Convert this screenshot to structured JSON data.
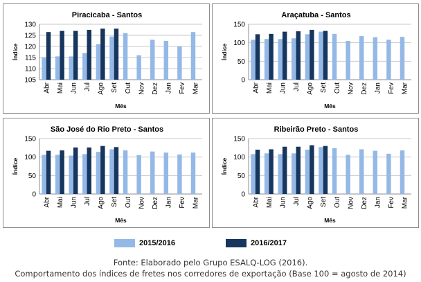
{
  "colors": {
    "s2015": "#95b9e6",
    "s2016": "#17365d",
    "grid": "#c9c9c9",
    "axis": "#8c8c8c"
  },
  "legend": {
    "s2015": "2015/2016",
    "s2016": "2016/2017"
  },
  "caption": {
    "source": "Fonte: Elaborado pelo Grupo ESALQ-LOG (2016).",
    "description": "Comportamento dos índices de fretes nos corredores de exportação (Base 100 = agosto de 2014)"
  },
  "chart_data": [
    {
      "type": "bar",
      "title": "Piracicaba - Santos",
      "xlabel": "Mês",
      "ylabel": "Índice",
      "ylim": [
        105,
        130
      ],
      "yticks": [
        105,
        110,
        115,
        120,
        125,
        130
      ],
      "grid": true,
      "categories": [
        "Abr",
        "Mai",
        "Jun",
        "Jul",
        "Ago",
        "Set",
        "Out",
        "Nov",
        "Dez",
        "Jan",
        "Fev",
        "Mar"
      ],
      "series": [
        {
          "name": "2015/2016",
          "values": [
            115,
            115.5,
            115.5,
            117,
            121,
            124.5,
            126,
            116,
            123,
            122.5,
            120,
            126.5
          ]
        },
        {
          "name": "2016/2017",
          "values": [
            126.5,
            127,
            127,
            127.5,
            128,
            128,
            null,
            null,
            null,
            null,
            null,
            null
          ]
        }
      ]
    },
    {
      "type": "bar",
      "title": "Araçatuba - Santos",
      "xlabel": "Mês",
      "ylabel": "Índice",
      "ylim": [
        0,
        150
      ],
      "yticks": [
        0,
        50,
        100,
        150
      ],
      "grid": true,
      "categories": [
        "Abr",
        "Mai",
        "Jun",
        "Jul",
        "Ago",
        "Set",
        "Out",
        "Nov",
        "Dez",
        "Jan",
        "Fev",
        "Mar"
      ],
      "series": [
        {
          "name": "2015/2016",
          "values": [
            108,
            110,
            110,
            112,
            123,
            130,
            124,
            105,
            118,
            115,
            108,
            116
          ]
        },
        {
          "name": "2016/2017",
          "values": [
            123,
            124,
            130,
            131,
            135,
            132,
            null,
            null,
            null,
            null,
            null,
            null
          ]
        }
      ]
    },
    {
      "type": "bar",
      "title": "São José do Rio Preto - Santos",
      "xlabel": "Mês",
      "ylabel": "Índice",
      "ylim": [
        0,
        150
      ],
      "yticks": [
        0,
        50,
        100,
        150
      ],
      "grid": true,
      "categories": [
        "Abr",
        "Mai",
        "Jun",
        "Jul",
        "Ago",
        "Set",
        "Out",
        "Nov",
        "Dez",
        "Jan",
        "Fev",
        "Mar"
      ],
      "series": [
        {
          "name": "2015/2016",
          "values": [
            106,
            106,
            104,
            108,
            114,
            121,
            118,
            105,
            115,
            112,
            107,
            112
          ]
        },
        {
          "name": "2016/2017",
          "values": [
            117,
            118,
            126,
            126,
            130,
            127,
            null,
            null,
            null,
            null,
            null,
            null
          ]
        }
      ]
    },
    {
      "type": "bar",
      "title": "Ribeirão Preto - Santos",
      "xlabel": "Mês",
      "ylabel": "Índice",
      "ylim": [
        0,
        150
      ],
      "yticks": [
        0,
        50,
        100,
        150
      ],
      "grid": true,
      "categories": [
        "Abr",
        "Mai",
        "Jun",
        "Jul",
        "Ago",
        "Set",
        "Out",
        "Nov",
        "Dez",
        "Jan",
        "Fev",
        "Mar"
      ],
      "series": [
        {
          "name": "2015/2016",
          "values": [
            108,
            110,
            108,
            110,
            120,
            127,
            124,
            106,
            121,
            117,
            109,
            118
          ]
        },
        {
          "name": "2016/2017",
          "values": [
            120,
            121,
            128,
            128,
            132,
            130,
            null,
            null,
            null,
            null,
            null,
            null
          ]
        }
      ]
    }
  ]
}
